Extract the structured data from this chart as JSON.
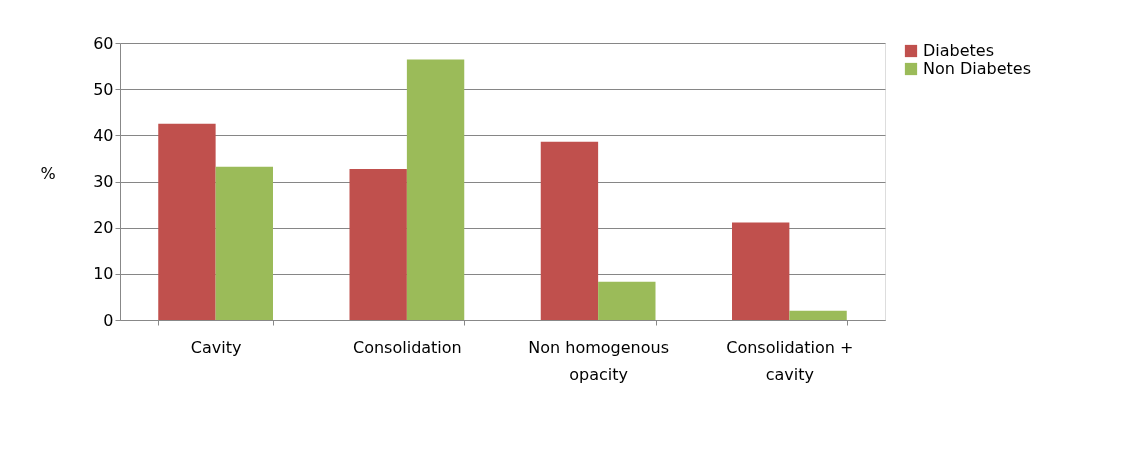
{
  "chart_data": {
    "type": "bar",
    "ylabel": "%",
    "categories": [
      "Cavity",
      "Consolidation",
      "Non homogenous opacity",
      "Consolidation + cavity"
    ],
    "series": [
      {
        "name": "Diabetes",
        "color": "#c0504d",
        "values": [
          42.5,
          32.7,
          38.6,
          21.1
        ]
      },
      {
        "name": "Non Diabetes",
        "color": "#9bbb59",
        "values": [
          33.2,
          56.4,
          8.3,
          2.0
        ]
      }
    ],
    "ylim": [
      0,
      60
    ],
    "yticks": [
      0,
      10,
      20,
      30,
      40,
      50,
      60
    ],
    "grid": "y",
    "legend": "right"
  }
}
